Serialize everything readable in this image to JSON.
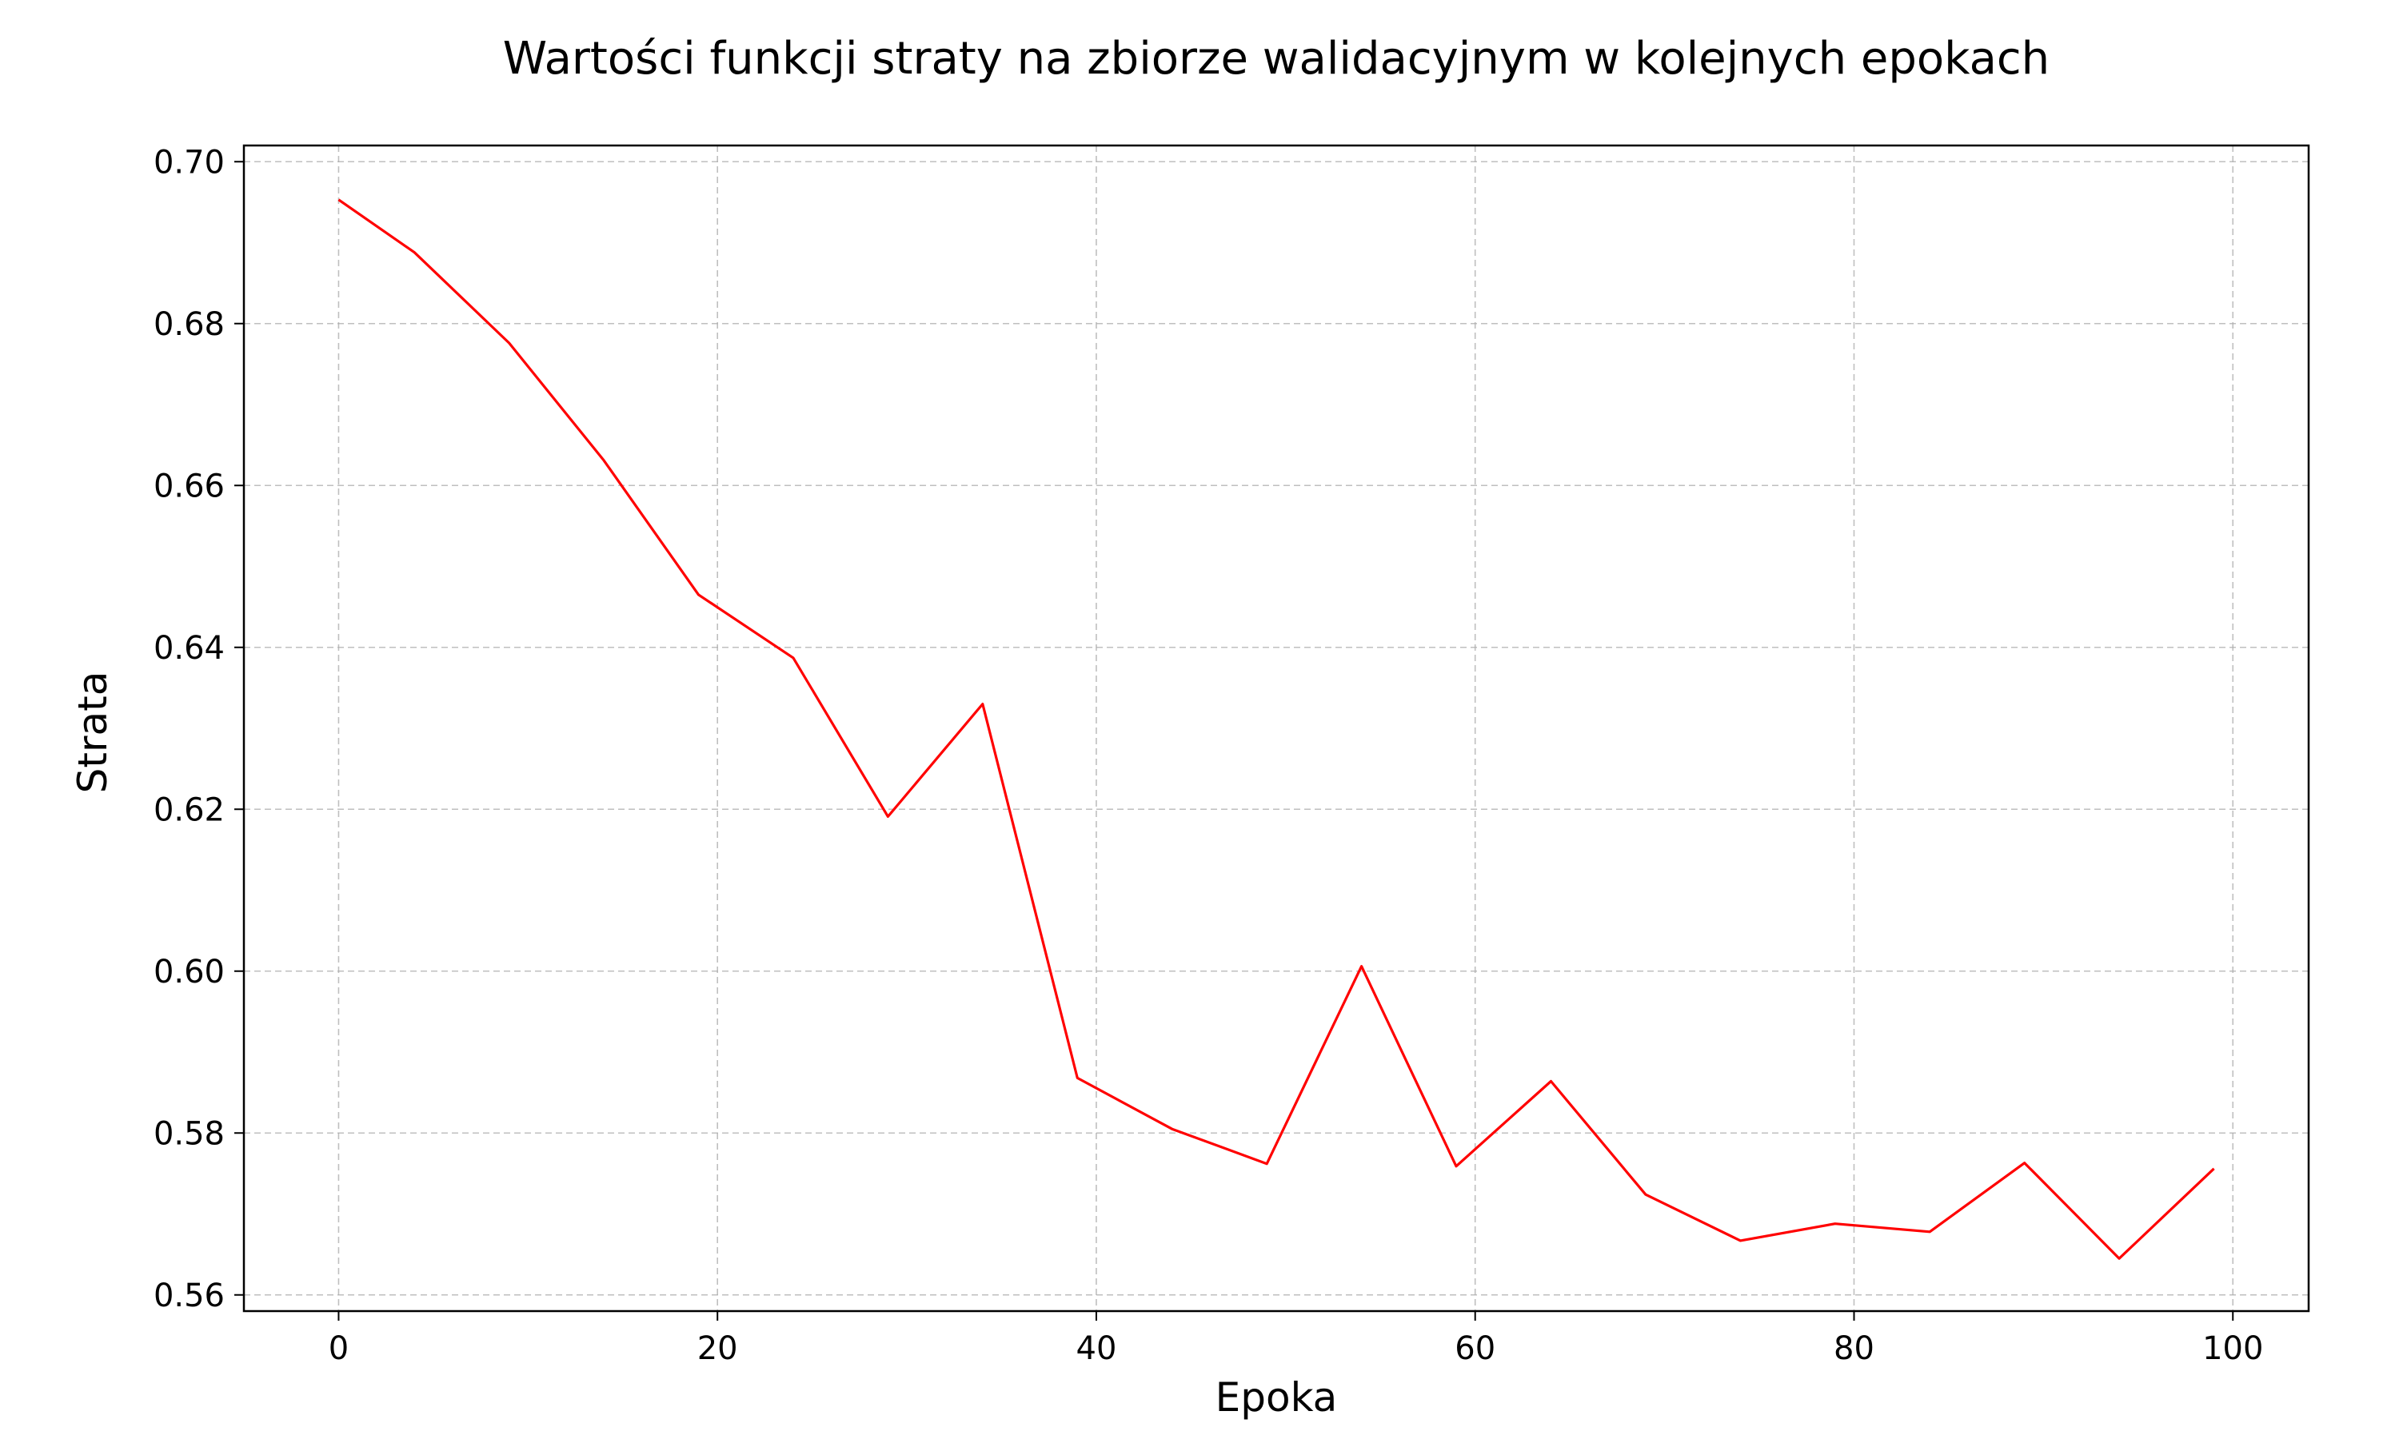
{
  "chart_data": {
    "type": "line",
    "title": "Wartości funkcji straty na zbiorze walidacyjnym w kolejnych epokach",
    "xlabel": "Epoka",
    "ylabel": "Strata",
    "xlim": [
      -5,
      104
    ],
    "ylim": [
      0.558,
      0.702
    ],
    "xticks": [
      0,
      20,
      40,
      60,
      80,
      100
    ],
    "xtick_labels": [
      "0",
      "20",
      "40",
      "60",
      "80",
      "100"
    ],
    "yticks": [
      0.56,
      0.58,
      0.6,
      0.62,
      0.64,
      0.66,
      0.68,
      0.7
    ],
    "ytick_labels": [
      "0.56",
      "0.58",
      "0.60",
      "0.62",
      "0.64",
      "0.66",
      "0.68",
      "0.70"
    ],
    "grid": true,
    "series": [
      {
        "color": "#ff0000",
        "x": [
          0,
          4,
          9,
          14,
          19,
          24,
          29,
          34,
          39,
          44,
          49,
          54,
          59,
          64,
          69,
          74,
          79,
          84,
          89,
          94,
          99
        ],
        "y": [
          0.6953,
          0.6888,
          0.6776,
          0.6631,
          0.6465,
          0.6387,
          0.6191,
          0.633,
          0.5868,
          0.5805,
          0.5762,
          0.6006,
          0.5759,
          0.5864,
          0.5724,
          0.5667,
          0.5688,
          0.5678,
          0.5763,
          0.5645,
          0.5756
        ]
      }
    ]
  }
}
